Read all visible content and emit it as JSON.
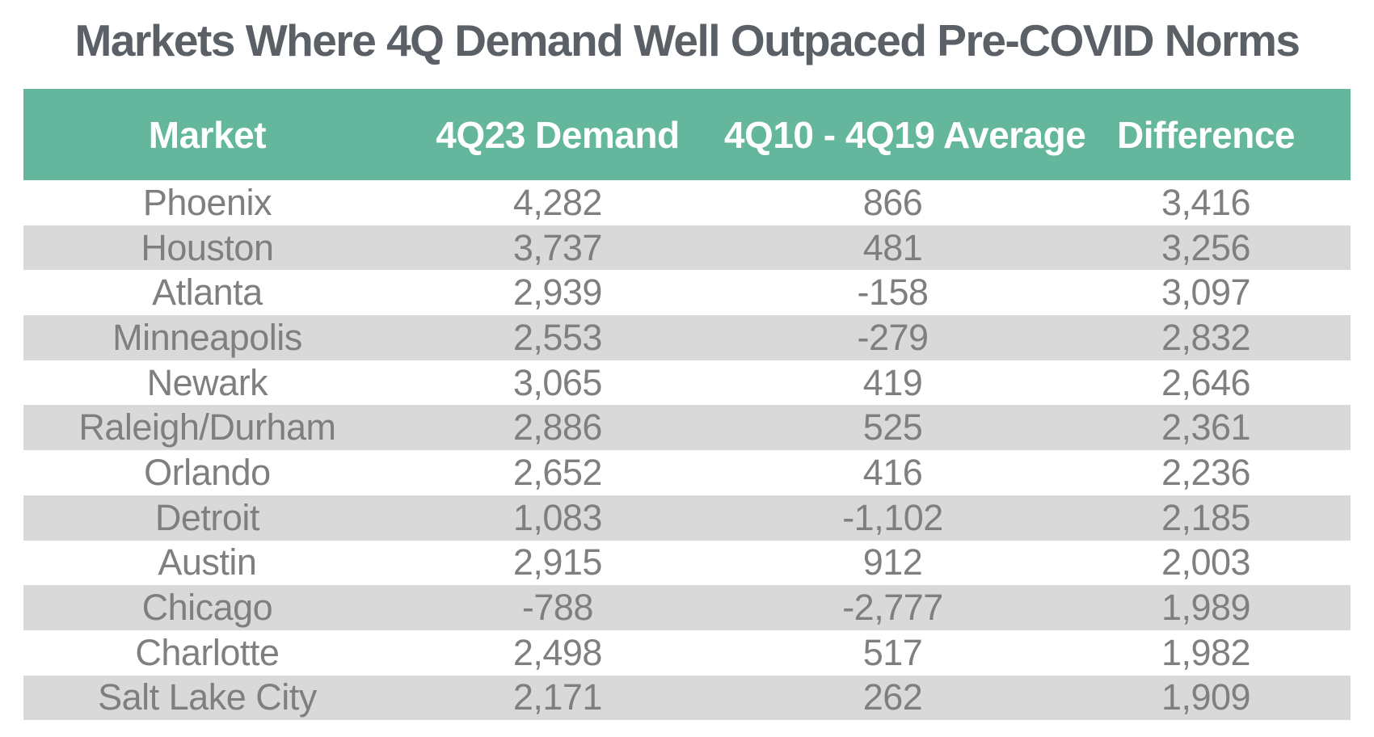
{
  "title": "Markets Where 4Q Demand Well Outpaced Pre-COVID Norms",
  "colors": {
    "header_bg": "#64b69c",
    "header_text": "#ffffff",
    "row_alt_bg": "#d9d9d9",
    "row_bg": "#ffffff",
    "body_text": "#7f7f7f",
    "title_text": "#5a6066"
  },
  "chart_data": {
    "type": "table",
    "title": "Markets Where 4Q Demand Well Outpaced Pre-COVID Norms",
    "columns": [
      "Market",
      "4Q23 Demand",
      "4Q10 - 4Q19 Average",
      "Difference"
    ],
    "rows": [
      [
        "Phoenix",
        "4,282",
        "866",
        "3,416"
      ],
      [
        "Houston",
        "3,737",
        "481",
        "3,256"
      ],
      [
        "Atlanta",
        "2,939",
        "-158",
        "3,097"
      ],
      [
        "Minneapolis",
        "2,553",
        "-279",
        "2,832"
      ],
      [
        "Newark",
        "3,065",
        "419",
        "2,646"
      ],
      [
        "Raleigh/Durham",
        "2,886",
        "525",
        "2,361"
      ],
      [
        "Orlando",
        "2,652",
        "416",
        "2,236"
      ],
      [
        "Detroit",
        "1,083",
        "-1,102",
        "2,185"
      ],
      [
        "Austin",
        "2,915",
        "912",
        "2,003"
      ],
      [
        "Chicago",
        "-788",
        "-2,777",
        "1,989"
      ],
      [
        "Charlotte",
        "2,498",
        "517",
        "1,982"
      ],
      [
        "Salt Lake City",
        "2,171",
        "262",
        "1,909"
      ]
    ],
    "layout_hints": {
      "row_striping": "alternating white and gray starting with white",
      "alignment": "all columns center-aligned",
      "grid": "off"
    }
  }
}
